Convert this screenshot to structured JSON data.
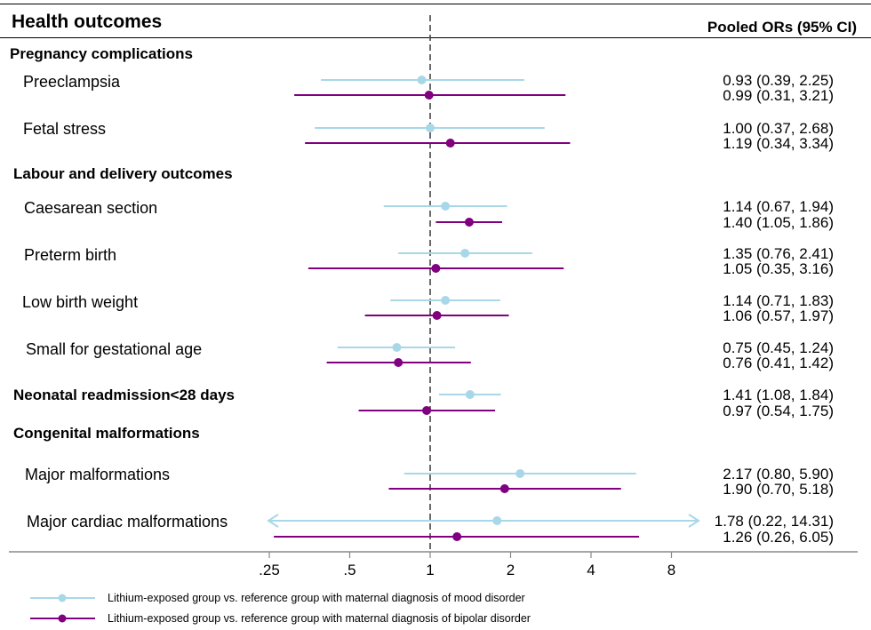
{
  "chart_data": {
    "type": "forest",
    "title": "Health outcomes",
    "right_header": "Pooled ORs (95% CI)",
    "x_scale": "log2",
    "xlim": [
      0.25,
      11
    ],
    "reference_line": 1,
    "xticks": [
      {
        "value": 0.25,
        "label": ".25"
      },
      {
        "value": 0.5,
        "label": ".5"
      },
      {
        "value": 1,
        "label": "1"
      },
      {
        "value": 2,
        "label": "2"
      },
      {
        "value": 4,
        "label": "4"
      },
      {
        "value": 8,
        "label": "8"
      }
    ],
    "series": [
      {
        "key": "mood",
        "name": "Lithium-exposed group vs. reference group with maternal diagnosis of mood disorder",
        "color": "#a8d8e8"
      },
      {
        "key": "bipolar",
        "name": "Lithium-exposed group vs. reference group with maternal diagnosis of bipolar disorder",
        "color": "#800080"
      }
    ],
    "groups": [
      {
        "label": "Pregnancy complications",
        "items": [
          {
            "label": "Preeclampsia",
            "mood": {
              "or": 0.93,
              "lo": 0.39,
              "hi": 2.25,
              "text": "0.93 (0.39, 2.25)"
            },
            "bipolar": {
              "or": 0.99,
              "lo": 0.31,
              "hi": 3.21,
              "text": "0.99 (0.31, 3.21)"
            }
          },
          {
            "label": "Fetal stress",
            "mood": {
              "or": 1.0,
              "lo": 0.37,
              "hi": 2.68,
              "text": "1.00 (0.37, 2.68)"
            },
            "bipolar": {
              "or": 1.19,
              "lo": 0.34,
              "hi": 3.34,
              "text": "1.19 (0.34, 3.34)"
            }
          }
        ]
      },
      {
        "label": "Labour and delivery outcomes",
        "items": [
          {
            "label": "Caesarean section",
            "mood": {
              "or": 1.14,
              "lo": 0.67,
              "hi": 1.94,
              "text": "1.14 (0.67, 1.94)"
            },
            "bipolar": {
              "or": 1.4,
              "lo": 1.05,
              "hi": 1.86,
              "text": "1.40 (1.05, 1.86)"
            }
          },
          {
            "label": "Preterm birth",
            "mood": {
              "or": 1.35,
              "lo": 0.76,
              "hi": 2.41,
              "text": "1.35 (0.76, 2.41)"
            },
            "bipolar": {
              "or": 1.05,
              "lo": 0.35,
              "hi": 3.16,
              "text": "1.05 (0.35, 3.16)"
            }
          },
          {
            "label": "Low birth weight",
            "mood": {
              "or": 1.14,
              "lo": 0.71,
              "hi": 1.83,
              "text": "1.14 (0.71, 1.83)"
            },
            "bipolar": {
              "or": 1.06,
              "lo": 0.57,
              "hi": 1.97,
              "text": "1.06 (0.57, 1.97)"
            }
          },
          {
            "label": "Small for gestational age",
            "mood": {
              "or": 0.75,
              "lo": 0.45,
              "hi": 1.24,
              "text": "0.75 (0.45, 1.24)"
            },
            "bipolar": {
              "or": 0.76,
              "lo": 0.41,
              "hi": 1.42,
              "text": "0.76 (0.41, 1.42)"
            }
          }
        ]
      },
      {
        "label": "Neonatal readmission<28 days",
        "items": [
          {
            "label": "",
            "mood": {
              "or": 1.41,
              "lo": 1.08,
              "hi": 1.84,
              "text": "1.41 (1.08, 1.84)"
            },
            "bipolar": {
              "or": 0.97,
              "lo": 0.54,
              "hi": 1.75,
              "text": "0.97 (0.54, 1.75)"
            }
          }
        ]
      },
      {
        "label": "Congenital malformations",
        "items": [
          {
            "label": "Major malformations",
            "mood": {
              "or": 2.17,
              "lo": 0.8,
              "hi": 5.9,
              "text": "2.17 (0.80, 5.90)"
            },
            "bipolar": {
              "or": 1.9,
              "lo": 0.7,
              "hi": 5.18,
              "text": "1.90 (0.70, 5.18)"
            }
          },
          {
            "label": "Major cardiac malformations",
            "mood": {
              "or": 1.78,
              "lo": 0.22,
              "hi": 14.31,
              "text": "1.78 (0.22, 14.31)",
              "arrow_left": true,
              "arrow_right": true
            },
            "bipolar": {
              "or": 1.26,
              "lo": 0.26,
              "hi": 6.05,
              "text": "1.26 (0.26, 6.05)"
            }
          }
        ]
      }
    ]
  }
}
